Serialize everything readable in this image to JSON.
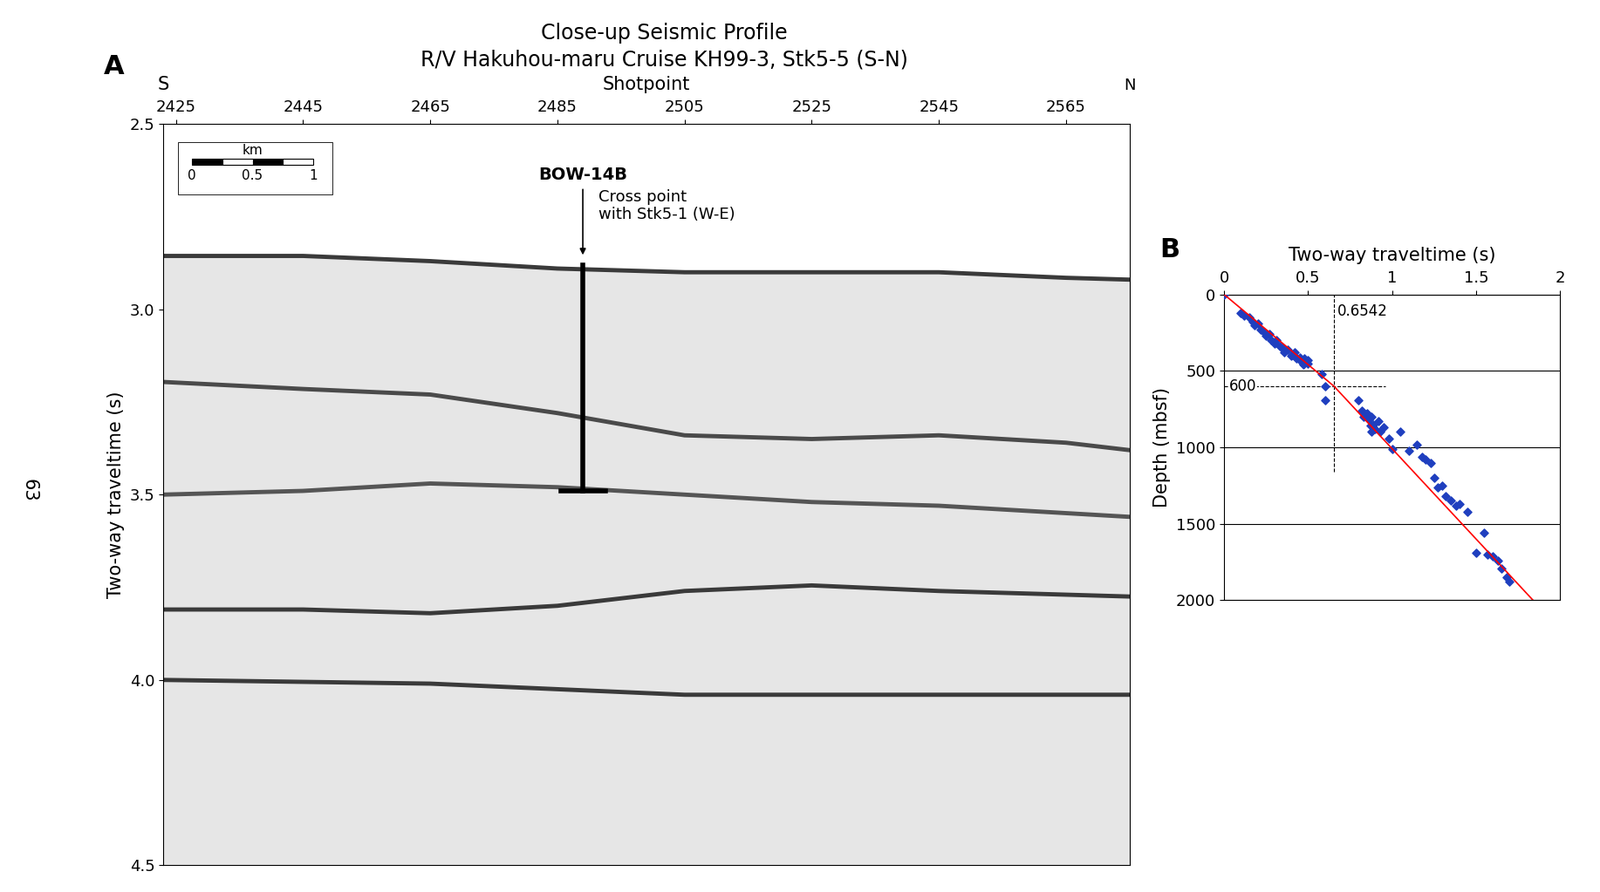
{
  "title": "Close-up Seismic Profile",
  "subtitle": "R/V Hakuhou-maru Cruise KH99-3, Stk5-5 (S-N)",
  "page": "63",
  "chart_data": [
    {
      "type": "profile",
      "panel": "A",
      "xlabel": "Shotpoint",
      "ylabel": "Two-way traveltime (s)",
      "left_end": "S",
      "right_end": "N",
      "xlim": [
        2423,
        2575
      ],
      "xticks": [
        2425,
        2445,
        2465,
        2485,
        2505,
        2525,
        2545,
        2565
      ],
      "ylim": [
        4.5,
        2.5
      ],
      "yticks": [
        2.5,
        3.0,
        3.5,
        4.0,
        4.5
      ],
      "color": "#e6e6e6",
      "series": [
        {
          "color": "#3a3a3a",
          "x": [
            2423,
            2445,
            2465,
            2485,
            2505,
            2525,
            2545,
            2565,
            2575
          ],
          "values": [
            2.856,
            2.856,
            2.87,
            2.89,
            2.9,
            2.9,
            2.9,
            2.915,
            2.92
          ]
        },
        {
          "color": "#4a4a4a",
          "x": [
            2423,
            2445,
            2465,
            2485,
            2505,
            2525,
            2545,
            2565,
            2575
          ],
          "values": [
            3.196,
            3.215,
            3.23,
            3.28,
            3.34,
            3.35,
            3.34,
            3.36,
            3.38
          ]
        },
        {
          "color": "#555555",
          "x": [
            2423,
            2445,
            2465,
            2485,
            2505,
            2525,
            2545,
            2565,
            2575
          ],
          "values": [
            3.5,
            3.49,
            3.47,
            3.48,
            3.5,
            3.52,
            3.53,
            3.55,
            3.56
          ]
        },
        {
          "color": "#3a3a3a",
          "x": [
            2423,
            2445,
            2465,
            2485,
            2505,
            2525,
            2545,
            2565,
            2575
          ],
          "values": [
            3.81,
            3.81,
            3.82,
            3.8,
            3.76,
            3.745,
            3.76,
            3.77,
            3.775
          ]
        },
        {
          "color": "#3a3a3a",
          "x": [
            2423,
            2465,
            2505,
            2545,
            2575
          ],
          "values": [
            4.0,
            4.01,
            4.04,
            4.04,
            4.04
          ]
        }
      ],
      "borehole": {
        "label": "BOW-14B",
        "x": 2489,
        "top": 2.88,
        "bottom": 3.49
      },
      "annotation": {
        "text": "Cross point\nwith Stk5-1 (W-E)",
        "from": 2.67,
        "to": 2.86
      },
      "scale_bar": {
        "label": "km",
        "ticks": [
          0,
          0.5,
          1
        ]
      }
    },
    {
      "type": "scatter",
      "panel": "B",
      "xlabel": "Two-way traveltime (s)",
      "ylabel": "Depth (mbsf)",
      "xlim": [
        0,
        2
      ],
      "xticks": [
        0,
        0.5,
        1,
        1.5,
        2
      ],
      "ylim": [
        2000,
        0
      ],
      "yticks": [
        0,
        500,
        1000,
        1500,
        2000
      ],
      "grid": true,
      "color": "#1f3fbf",
      "marker": "diamond",
      "x": [
        0,
        0.1,
        0.12,
        0.15,
        0.17,
        0.18,
        0.2,
        0.22,
        0.24,
        0.25,
        0.27,
        0.28,
        0.3,
        0.31,
        0.33,
        0.35,
        0.36,
        0.38,
        0.4,
        0.42,
        0.43,
        0.45,
        0.46,
        0.47,
        0.48,
        0.5,
        0.5,
        0.58,
        0.6,
        0.6,
        0.8,
        0.82,
        0.83,
        0.85,
        0.86,
        0.87,
        0.88,
        0.88,
        0.89,
        0.9,
        0.92,
        0.93,
        0.95,
        0.98,
        1.0,
        1.05,
        1.1,
        1.15,
        1.18,
        1.2,
        1.23,
        1.25,
        1.27,
        1.3,
        1.32,
        1.35,
        1.38,
        1.4,
        1.45,
        1.5,
        1.55,
        1.57,
        1.6,
        1.63,
        1.65,
        1.68,
        1.7
      ],
      "values": [
        0,
        120,
        140,
        150,
        180,
        200,
        190,
        230,
        250,
        270,
        260,
        300,
        320,
        300,
        340,
        350,
        380,
        360,
        400,
        380,
        420,
        410,
        440,
        460,
        420,
        430,
        450,
        520,
        600,
        690,
        690,
        760,
        800,
        780,
        820,
        860,
        800,
        900,
        850,
        880,
        830,
        900,
        870,
        940,
        1010,
        900,
        1020,
        980,
        1060,
        1080,
        1100,
        1200,
        1260,
        1250,
        1320,
        1350,
        1380,
        1370,
        1420,
        1690,
        1560,
        1700,
        1710,
        1740,
        1790,
        1850,
        1880
      ],
      "fit": {
        "color": "red",
        "x": [
          0,
          0.6542,
          1.84
        ],
        "values": [
          0,
          600,
          2000
        ]
      },
      "reference": {
        "x": 0.6542,
        "y": 600,
        "line_style": "dashed"
      }
    }
  ]
}
